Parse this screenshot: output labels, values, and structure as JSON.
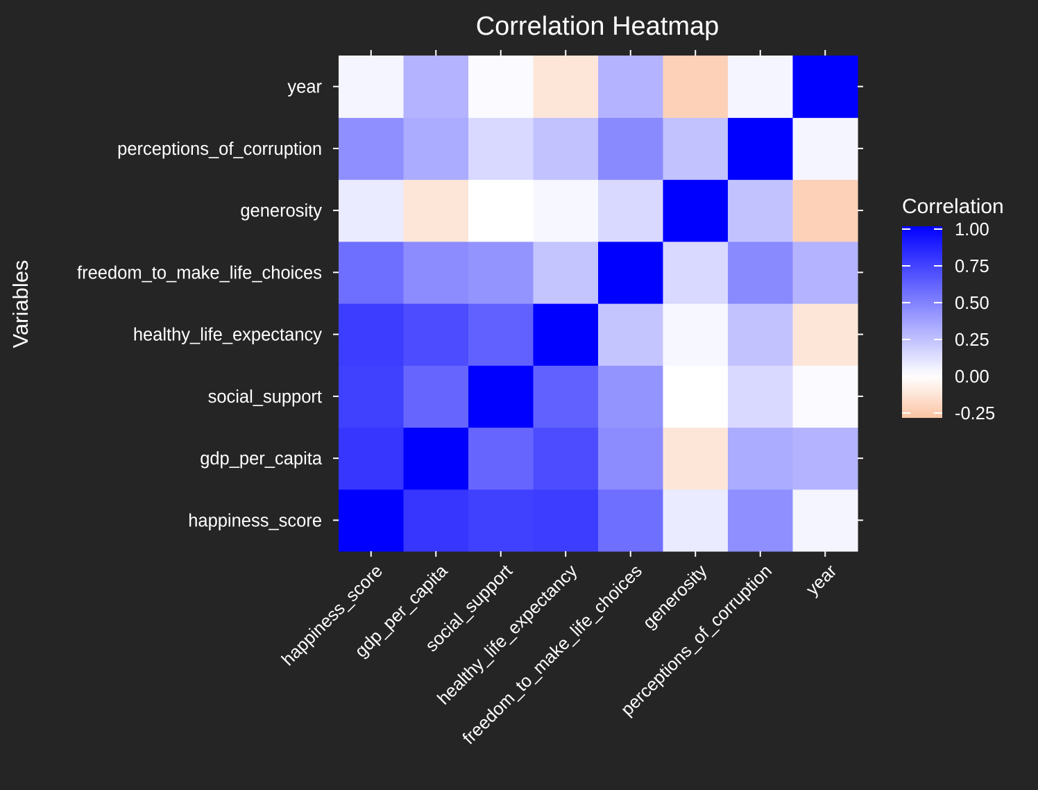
{
  "chart_data": {
    "type": "heatmap",
    "title": "Correlation Heatmap",
    "xlabel": "",
    "ylabel": "Variables",
    "x_categories": [
      "happiness_score",
      "gdp_per_capita",
      "social_support",
      "healthy_life_expectancy",
      "freedom_to_make_life_choices",
      "generosity",
      "perceptions_of_corruption",
      "year"
    ],
    "y_categories": [
      "happiness_score",
      "gdp_per_capita",
      "social_support",
      "healthy_life_expectancy",
      "freedom_to_make_life_choices",
      "generosity",
      "perceptions_of_corruption",
      "year"
    ],
    "values": [
      [
        1.0,
        0.79,
        0.75,
        0.76,
        0.57,
        0.08,
        0.44,
        0.04
      ],
      [
        0.79,
        1.0,
        0.6,
        0.7,
        0.45,
        -0.12,
        0.33,
        0.3
      ],
      [
        0.75,
        0.6,
        1.0,
        0.62,
        0.42,
        0.0,
        0.15,
        0.02
      ],
      [
        0.76,
        0.7,
        0.62,
        1.0,
        0.23,
        0.03,
        0.24,
        -0.12
      ],
      [
        0.57,
        0.45,
        0.42,
        0.23,
        1.0,
        0.15,
        0.46,
        0.3
      ],
      [
        0.08,
        -0.12,
        0.0,
        0.03,
        0.15,
        1.0,
        0.24,
        -0.22
      ],
      [
        0.44,
        0.33,
        0.15,
        0.24,
        0.46,
        0.24,
        1.0,
        0.04
      ],
      [
        0.04,
        0.3,
        0.02,
        -0.12,
        0.3,
        -0.22,
        0.04,
        1.0
      ]
    ],
    "legend": {
      "title": "Correlation",
      "ticks": [
        "1.00",
        "0.75",
        "0.50",
        "0.25",
        "0.00",
        "-0.25"
      ],
      "tick_values": [
        1.0,
        0.75,
        0.5,
        0.25,
        0.0,
        -0.25
      ],
      "range": [
        -0.28,
        1.0
      ],
      "placement": "right"
    },
    "colors": {
      "high": "#0000ff",
      "mid": "#ffffff",
      "low": "#fbc4a4",
      "background": "#252525",
      "text": "#ffffff"
    }
  }
}
